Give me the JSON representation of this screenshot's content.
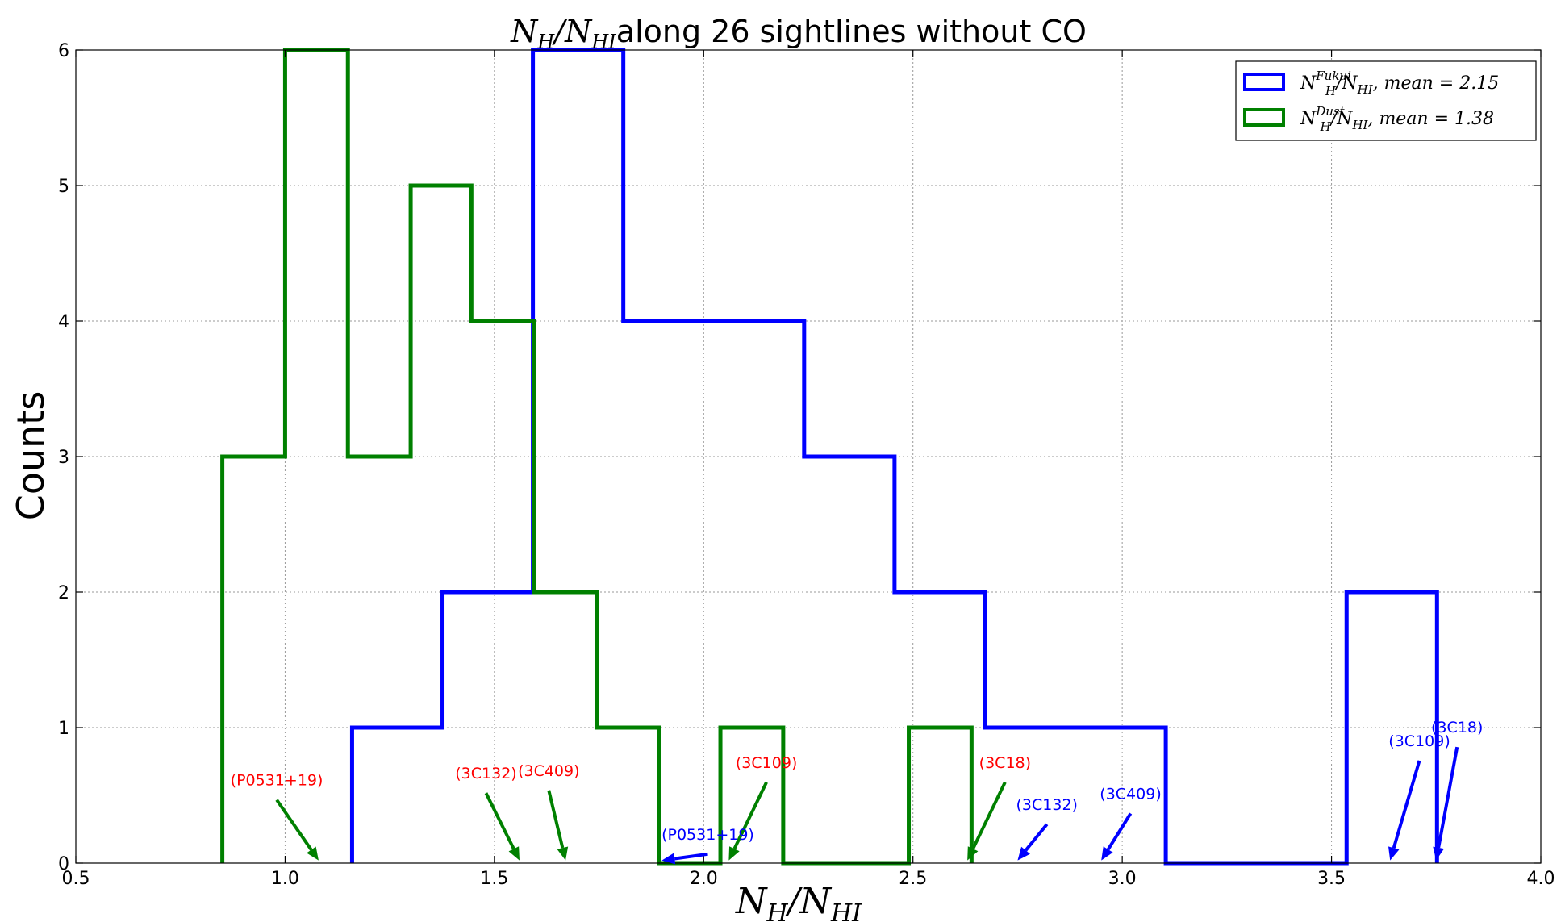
{
  "chart_data": {
    "type": "histogram",
    "title_math": "N_H / N_HI",
    "title_text": "along 26 sightlines without CO",
    "xlabel": "N_H / N_HI",
    "ylabel": "Counts",
    "xlim": [
      0.5,
      4.0
    ],
    "ylim": [
      0,
      6
    ],
    "xticks": [
      0.5,
      1.0,
      1.5,
      2.0,
      2.5,
      3.0,
      3.5,
      4.0
    ],
    "xtick_labels": [
      "0.5",
      "1.0",
      "1.5",
      "2.0",
      "2.5",
      "3.0",
      "3.5",
      "4.0"
    ],
    "yticks": [
      0,
      1,
      2,
      3,
      4,
      5,
      6
    ],
    "ytick_labels": [
      "0",
      "1",
      "2",
      "3",
      "4",
      "5",
      "6"
    ],
    "grid": true,
    "legend_position": "top-right",
    "series": [
      {
        "name": "N_H^Fukui / N_HI, mean = 2.15",
        "legend_label_main": "N",
        "legend_label_sup": "Fukui",
        "legend_label_rest": "/N",
        "legend_label_rest_sub": "HI",
        "legend_label_tail": ", mean = 2.15",
        "color": "#0000ff",
        "edges": [
          1.16,
          1.376,
          1.592,
          1.808,
          2.024,
          2.24,
          2.456,
          2.672,
          2.888,
          3.104,
          3.32,
          3.536,
          3.752
        ],
        "counts": [
          1,
          2,
          6,
          4,
          4,
          3,
          2,
          1,
          1,
          0,
          0,
          2
        ]
      },
      {
        "name": "N_H^Dust / N_HI, mean = 1.38",
        "legend_label_main": "N",
        "legend_label_sup": "Dust",
        "legend_label_rest": "/N",
        "legend_label_rest_sub": "HI",
        "legend_label_tail": ", mean = 1.38",
        "color": "#008000",
        "edges": [
          0.85,
          1.0,
          1.15,
          1.3,
          1.445,
          1.595,
          1.745,
          1.893,
          2.04,
          2.19,
          2.34,
          2.49,
          2.64
        ],
        "counts": [
          3,
          6,
          3,
          5,
          4,
          2,
          1,
          0,
          1,
          0,
          0,
          1
        ]
      }
    ],
    "annotations": [
      {
        "text": "(P0531+19)",
        "color": "#ff0000",
        "arrow_color": "#008000",
        "text_xy": [
          0.98,
          0.55
        ],
        "point_xy": [
          1.08,
          0.02
        ]
      },
      {
        "text": "(3C132)",
        "color": "#ff0000",
        "arrow_color": "#008000",
        "text_xy": [
          1.48,
          0.6
        ],
        "point_xy": [
          1.56,
          0.02
        ]
      },
      {
        "text": "(3C409)",
        "color": "#ff0000",
        "arrow_color": "#008000",
        "text_xy": [
          1.63,
          0.62
        ],
        "point_xy": [
          1.67,
          0.02
        ]
      },
      {
        "text": "(3C109)",
        "color": "#ff0000",
        "arrow_color": "#008000",
        "text_xy": [
          2.15,
          0.68
        ],
        "point_xy": [
          2.06,
          0.02
        ]
      },
      {
        "text": "(3C18)",
        "color": "#ff0000",
        "arrow_color": "#008000",
        "text_xy": [
          2.72,
          0.68
        ],
        "point_xy": [
          2.63,
          0.02
        ]
      },
      {
        "text": "(P0531+19)",
        "color": "#0000ff",
        "arrow_color": "#0000ff",
        "text_xy": [
          2.01,
          0.15
        ],
        "point_xy": [
          1.9,
          0.02
        ]
      },
      {
        "text": "(3C132)",
        "color": "#0000ff",
        "arrow_color": "#0000ff",
        "text_xy": [
          2.82,
          0.37
        ],
        "point_xy": [
          2.75,
          0.02
        ]
      },
      {
        "text": "(3C409)",
        "color": "#0000ff",
        "arrow_color": "#0000ff",
        "text_xy": [
          3.02,
          0.45
        ],
        "point_xy": [
          2.95,
          0.02
        ]
      },
      {
        "text": "(3C109)",
        "color": "#0000ff",
        "arrow_color": "#0000ff",
        "text_xy": [
          3.71,
          0.84
        ],
        "point_xy": [
          3.64,
          0.02
        ]
      },
      {
        "text": "(3C18)",
        "color": "#0000ff",
        "arrow_color": "#0000ff",
        "text_xy": [
          3.8,
          0.94
        ],
        "point_xy": [
          3.75,
          0.02
        ]
      }
    ]
  }
}
